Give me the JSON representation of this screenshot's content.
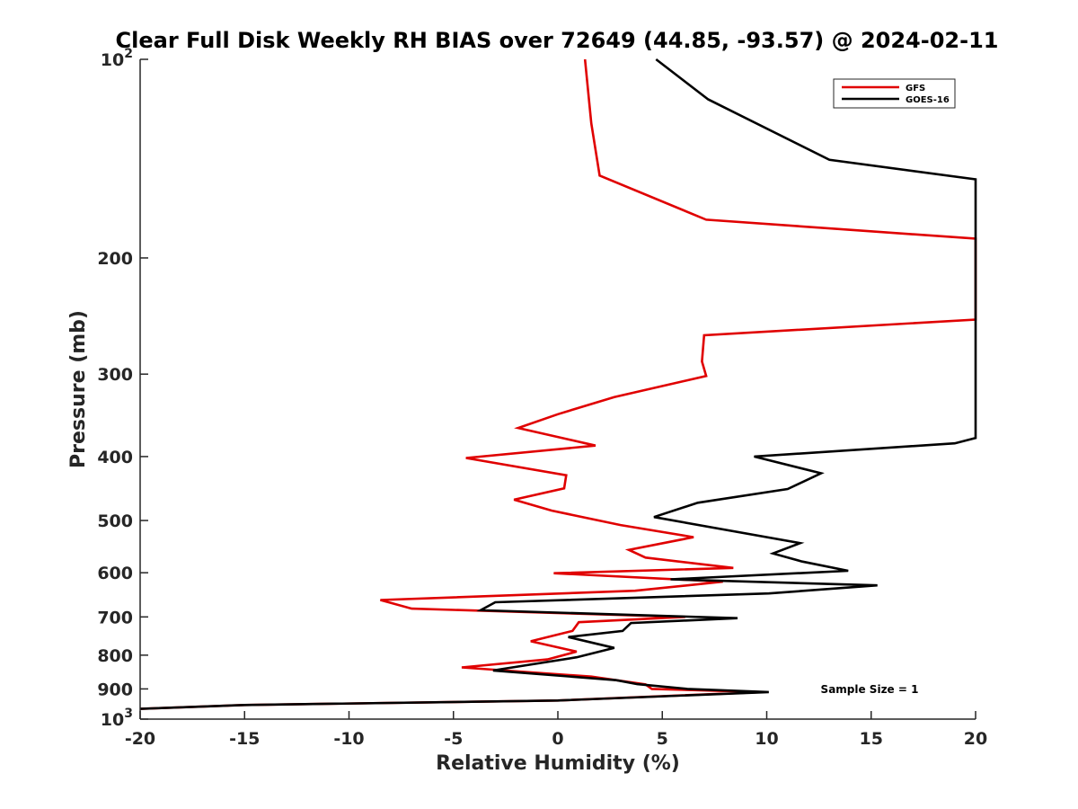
{
  "chart_data": {
    "type": "line",
    "title": "Clear Full Disk Weekly RH BIAS over 72649 (44.85, -93.57) @ 2024-02-11",
    "xlabel": "Relative Humidity (%)",
    "ylabel": "Pressure (mb)",
    "xlim": [
      -20,
      20
    ],
    "ylim": [
      100,
      1000
    ],
    "y_scale": "log",
    "y_reversed": true,
    "x_ticks": [
      "-20",
      "-15",
      "-10",
      "-5",
      "0",
      "5",
      "10",
      "15",
      "20"
    ],
    "y_ticks": [
      {
        "value": 100,
        "base": "10",
        "exp": "2"
      },
      {
        "value": 200,
        "label": "200"
      },
      {
        "value": 300,
        "label": "300"
      },
      {
        "value": 400,
        "label": "400"
      },
      {
        "value": 500,
        "label": "500"
      },
      {
        "value": 600,
        "label": "600"
      },
      {
        "value": 700,
        "label": "700"
      },
      {
        "value": 800,
        "label": "800"
      },
      {
        "value": 900,
        "label": "900"
      },
      {
        "value": 1000,
        "base": "10",
        "exp": "3"
      }
    ],
    "grid": false,
    "legend_position": "top-right",
    "annotation": "Sample Size = 1",
    "series": [
      {
        "name": "GFS",
        "color": "#e00000",
        "points": [
          [
            1.3,
            100
          ],
          [
            1.6,
            125
          ],
          [
            2.0,
            150
          ],
          [
            7.1,
            175
          ],
          [
            20,
            187
          ],
          [
            20,
            248
          ],
          [
            7.0,
            262
          ],
          [
            6.9,
            287
          ],
          [
            7.1,
            302
          ],
          [
            2.7,
            325
          ],
          [
            0.0,
            345
          ],
          [
            -1.9,
            362
          ],
          [
            1.8,
            385
          ],
          [
            -4.4,
            402
          ],
          [
            0.4,
            427
          ],
          [
            0.3,
            447
          ],
          [
            -2.1,
            465
          ],
          [
            -0.3,
            483
          ],
          [
            3.0,
            508
          ],
          [
            6.5,
            530
          ],
          [
            3.4,
            554
          ],
          [
            4.2,
            569
          ],
          [
            8.4,
            590
          ],
          [
            -0.2,
            601
          ],
          [
            7.9,
            619
          ],
          [
            3.7,
            639
          ],
          [
            -8.5,
            660
          ],
          [
            -7.0,
            680
          ],
          [
            6.1,
            700
          ],
          [
            1.0,
            713
          ],
          [
            0.7,
            735
          ],
          [
            -1.3,
            762
          ],
          [
            0.9,
            790
          ],
          [
            -0.5,
            812
          ],
          [
            -4.6,
            835
          ],
          [
            1.6,
            862
          ],
          [
            4.2,
            886
          ],
          [
            4.5,
            900
          ],
          [
            9.8,
            910
          ],
          [
            0.0,
            937
          ],
          [
            -15,
            952
          ],
          [
            -20,
            965
          ]
        ]
      },
      {
        "name": "GOES-16",
        "color": "#000000",
        "points": [
          [
            4.7,
            100
          ],
          [
            7.2,
            115
          ],
          [
            13.0,
            142
          ],
          [
            20,
            152
          ],
          [
            20,
            375
          ],
          [
            19.0,
            382
          ],
          [
            9.4,
            400
          ],
          [
            12.6,
            424
          ],
          [
            11.0,
            448
          ],
          [
            6.7,
            470
          ],
          [
            4.6,
            494
          ],
          [
            11.6,
            541
          ],
          [
            10.3,
            561
          ],
          [
            11.7,
            577
          ],
          [
            13.9,
            596
          ],
          [
            5.4,
            614
          ],
          [
            15.3,
            627
          ],
          [
            10.1,
            645
          ],
          [
            -3.0,
            665
          ],
          [
            -3.7,
            684
          ],
          [
            8.6,
            703
          ],
          [
            3.5,
            715
          ],
          [
            3.1,
            735
          ],
          [
            0.5,
            751
          ],
          [
            2.7,
            780
          ],
          [
            0.9,
            806
          ],
          [
            -3.1,
            844
          ],
          [
            2.8,
            873
          ],
          [
            3.8,
            885
          ],
          [
            6.2,
            900
          ],
          [
            10.1,
            910
          ],
          [
            0.0,
            937
          ],
          [
            -15,
            952
          ],
          [
            -20,
            965
          ]
        ]
      }
    ]
  }
}
